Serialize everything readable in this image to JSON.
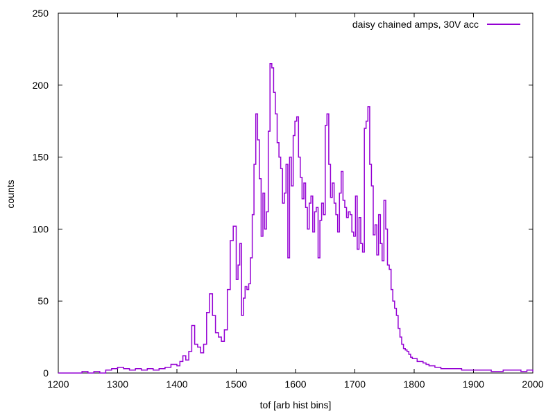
{
  "chart_data": {
    "type": "line",
    "style": "histogram-steps",
    "xlabel": "tof [arb hist bins]",
    "ylabel": "counts",
    "xlim": [
      1200,
      2000
    ],
    "ylim": [
      0,
      250
    ],
    "xticks": [
      1200,
      1300,
      1400,
      1500,
      1600,
      1700,
      1800,
      1900,
      2000
    ],
    "yticks": [
      0,
      50,
      100,
      150,
      200,
      250
    ],
    "legend": {
      "position": "top-right"
    },
    "grid": false,
    "series": [
      {
        "name": "daisy chained amps, 30V acc",
        "color": "#9400d3",
        "x": [
          1200,
          1210,
          1220,
          1230,
          1240,
          1250,
          1260,
          1270,
          1280,
          1290,
          1300,
          1310,
          1320,
          1330,
          1340,
          1350,
          1360,
          1370,
          1380,
          1390,
          1400,
          1405,
          1410,
          1415,
          1420,
          1425,
          1430,
          1435,
          1440,
          1445,
          1450,
          1455,
          1460,
          1465,
          1470,
          1475,
          1480,
          1485,
          1490,
          1495,
          1500,
          1503,
          1506,
          1509,
          1512,
          1515,
          1518,
          1521,
          1524,
          1527,
          1530,
          1533,
          1536,
          1539,
          1542,
          1545,
          1548,
          1551,
          1554,
          1557,
          1560,
          1563,
          1566,
          1569,
          1572,
          1575,
          1578,
          1581,
          1584,
          1587,
          1590,
          1593,
          1596,
          1599,
          1602,
          1605,
          1608,
          1611,
          1614,
          1617,
          1620,
          1623,
          1626,
          1629,
          1632,
          1635,
          1638,
          1641,
          1644,
          1647,
          1650,
          1653,
          1656,
          1659,
          1662,
          1665,
          1668,
          1671,
          1674,
          1677,
          1680,
          1683,
          1686,
          1689,
          1692,
          1695,
          1698,
          1701,
          1704,
          1707,
          1710,
          1713,
          1716,
          1719,
          1722,
          1725,
          1728,
          1731,
          1734,
          1737,
          1740,
          1743,
          1746,
          1749,
          1752,
          1755,
          1758,
          1761,
          1764,
          1767,
          1770,
          1773,
          1776,
          1779,
          1782,
          1785,
          1788,
          1791,
          1794,
          1797,
          1800,
          1805,
          1810,
          1815,
          1820,
          1825,
          1830,
          1835,
          1840,
          1845,
          1850,
          1860,
          1870,
          1880,
          1890,
          1900,
          1910,
          1920,
          1930,
          1940,
          1950,
          1960,
          1970,
          1980,
          1990,
          2000
        ],
        "y": [
          0,
          0,
          0,
          0,
          1,
          0,
          1,
          0,
          2,
          3,
          4,
          3,
          2,
          3,
          2,
          3,
          2,
          3,
          4,
          6,
          5,
          8,
          12,
          9,
          15,
          33,
          20,
          18,
          14,
          20,
          42,
          55,
          40,
          28,
          25,
          22,
          30,
          58,
          92,
          102,
          65,
          75,
          90,
          40,
          52,
          60,
          58,
          62,
          80,
          110,
          145,
          180,
          162,
          135,
          95,
          125,
          100,
          112,
          168,
          215,
          212,
          195,
          180,
          160,
          150,
          142,
          118,
          125,
          145,
          80,
          150,
          130,
          165,
          175,
          178,
          150,
          136,
          121,
          132,
          115,
          100,
          118,
          123,
          98,
          112,
          115,
          80,
          106,
          118,
          110,
          172,
          180,
          145,
          122,
          132,
          118,
          110,
          98,
          125,
          140,
          120,
          115,
          108,
          112,
          110,
          98,
          95,
          123,
          86,
          108,
          90,
          84,
          170,
          175,
          185,
          145,
          130,
          96,
          103,
          82,
          110,
          90,
          78,
          120,
          100,
          75,
          72,
          58,
          50,
          45,
          40,
          31,
          25,
          20,
          17,
          16,
          15,
          13,
          11,
          10,
          10,
          8,
          8,
          7,
          6,
          5,
          5,
          4,
          4,
          3,
          3,
          3,
          3,
          2,
          2,
          2,
          2,
          2,
          1,
          1,
          2,
          2,
          2,
          1,
          2,
          1
        ]
      }
    ]
  }
}
